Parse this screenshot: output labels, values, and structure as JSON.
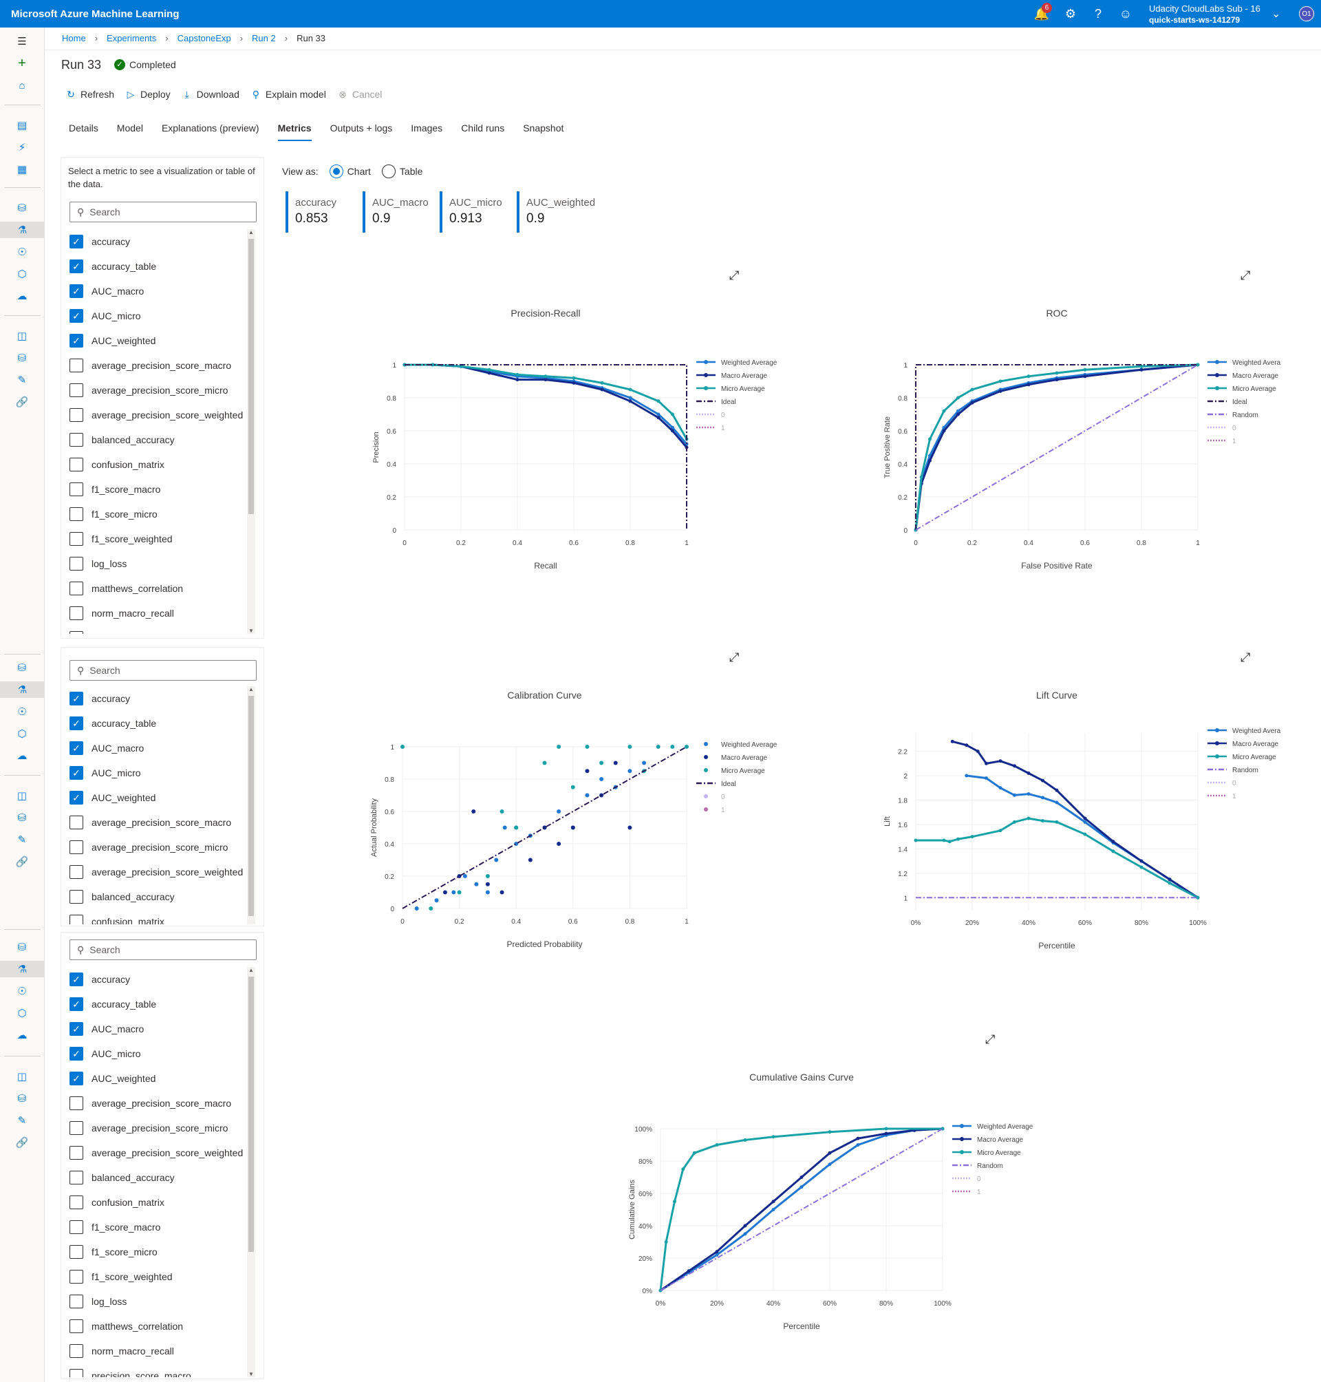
{
  "app": {
    "title": "Microsoft Azure Machine Learning",
    "notification_count": "6",
    "account_name": "Udacity CloudLabs Sub - 16",
    "workspace": "quick-starts-ws-141279",
    "avatar_initials": "O1"
  },
  "breadcrumb": [
    "Home",
    "Experiments",
    "CapstoneExp",
    "Run 2",
    "Run 33"
  ],
  "run": {
    "title": "Run 33",
    "status": "Completed"
  },
  "commands": [
    {
      "label": "Refresh",
      "icon": "refresh-icon"
    },
    {
      "label": "Deploy",
      "icon": "deploy-icon"
    },
    {
      "label": "Download",
      "icon": "download-icon"
    },
    {
      "label": "Explain model",
      "icon": "explain-icon"
    },
    {
      "label": "Cancel",
      "icon": "cancel-icon"
    }
  ],
  "tabs": [
    "Details",
    "Model",
    "Explanations (preview)",
    "Metrics",
    "Outputs + logs",
    "Images",
    "Child runs",
    "Snapshot"
  ],
  "active_tab": "Metrics",
  "metrics_panel": {
    "description": "Select a metric to see a visualization or table of the data.",
    "search_placeholder": "Search",
    "items": [
      {
        "label": "accuracy",
        "checked": true
      },
      {
        "label": "accuracy_table",
        "checked": true
      },
      {
        "label": "AUC_macro",
        "checked": true
      },
      {
        "label": "AUC_micro",
        "checked": true
      },
      {
        "label": "AUC_weighted",
        "checked": true
      },
      {
        "label": "average_precision_score_macro",
        "checked": false
      },
      {
        "label": "average_precision_score_micro",
        "checked": false
      },
      {
        "label": "average_precision_score_weighted",
        "checked": false
      },
      {
        "label": "balanced_accuracy",
        "checked": false
      },
      {
        "label": "confusion_matrix",
        "checked": false
      },
      {
        "label": "f1_score_macro",
        "checked": false
      },
      {
        "label": "f1_score_micro",
        "checked": false
      },
      {
        "label": "f1_score_weighted",
        "checked": false
      },
      {
        "label": "log_loss",
        "checked": false
      },
      {
        "label": "matthews_correlation",
        "checked": false
      },
      {
        "label": "norm_macro_recall",
        "checked": false
      },
      {
        "label": "precision_score_macro",
        "checked": false
      }
    ]
  },
  "view_as": {
    "label": "View as:",
    "options": [
      "Chart",
      "Table"
    ],
    "selected": "Chart"
  },
  "metric_tiles": [
    {
      "label": "accuracy",
      "value": "0.853"
    },
    {
      "label": "AUC_macro",
      "value": "0.9"
    },
    {
      "label": "AUC_micro",
      "value": "0.913"
    },
    {
      "label": "AUC_weighted",
      "value": "0.9"
    }
  ],
  "colors": {
    "accent": "#0078d4",
    "weighted": "#1f78d1",
    "macro": "#142a8c",
    "micro": "#17a2a8",
    "ideal": "#2b1a55",
    "random": "#8a6fd8",
    "class0": "#c4b3f0",
    "class1": "#b56bb0"
  },
  "chart_data": [
    {
      "type": "line",
      "title": "Precision-Recall",
      "xlabel": "Recall",
      "ylabel": "Precision",
      "xlim": [
        0,
        1
      ],
      "ylim": [
        0,
        1
      ],
      "xticks": [
        "0",
        "0.2",
        "0.4",
        "0.6",
        "0.8",
        "1"
      ],
      "yticks": [
        "0",
        "0.2",
        "0.4",
        "0.6",
        "0.8",
        "1"
      ],
      "legend": [
        "Weighted Average",
        "Macro Average",
        "Micro Average",
        "Ideal",
        "0",
        "1"
      ],
      "series": [
        {
          "name": "Weighted Average",
          "x": [
            0,
            0.1,
            0.2,
            0.3,
            0.4,
            0.5,
            0.6,
            0.7,
            0.8,
            0.9,
            0.95,
            1
          ],
          "y": [
            1,
            1,
            0.99,
            0.96,
            0.93,
            0.92,
            0.9,
            0.86,
            0.8,
            0.7,
            0.62,
            0.52
          ]
        },
        {
          "name": "Macro Average",
          "x": [
            0,
            0.1,
            0.2,
            0.3,
            0.4,
            0.5,
            0.6,
            0.7,
            0.8,
            0.9,
            0.95,
            1
          ],
          "y": [
            1,
            1,
            0.99,
            0.95,
            0.91,
            0.91,
            0.89,
            0.85,
            0.78,
            0.68,
            0.6,
            0.5
          ]
        },
        {
          "name": "Micro Average",
          "x": [
            0,
            0.1,
            0.2,
            0.3,
            0.4,
            0.5,
            0.6,
            0.7,
            0.8,
            0.9,
            0.95,
            1
          ],
          "y": [
            1,
            1,
            0.99,
            0.97,
            0.94,
            0.93,
            0.92,
            0.89,
            0.85,
            0.78,
            0.7,
            0.55
          ]
        },
        {
          "name": "Ideal",
          "x": [
            0,
            1,
            1
          ],
          "y": [
            1,
            1,
            0
          ]
        }
      ]
    },
    {
      "type": "line",
      "title": "ROC",
      "xlabel": "False Positive Rate",
      "ylabel": "True Positive Rate",
      "xlim": [
        0,
        1
      ],
      "ylim": [
        0,
        1
      ],
      "xticks": [
        "0",
        "0.2",
        "0.4",
        "0.6",
        "0.8",
        "1"
      ],
      "yticks": [
        "0",
        "0.2",
        "0.4",
        "0.6",
        "0.8",
        "1"
      ],
      "legend": [
        "Weighted Avera",
        "Macro Average",
        "Micro Average",
        "Ideal",
        "Random",
        "0",
        "1"
      ],
      "series": [
        {
          "name": "Weighted Avera",
          "x": [
            0,
            0.02,
            0.05,
            0.1,
            0.15,
            0.2,
            0.3,
            0.4,
            0.5,
            0.6,
            0.8,
            1
          ],
          "y": [
            0,
            0.3,
            0.45,
            0.62,
            0.72,
            0.78,
            0.85,
            0.89,
            0.92,
            0.94,
            0.97,
            1
          ]
        },
        {
          "name": "Macro Average",
          "x": [
            0,
            0.02,
            0.05,
            0.1,
            0.15,
            0.2,
            0.3,
            0.4,
            0.5,
            0.6,
            0.8,
            1
          ],
          "y": [
            0,
            0.28,
            0.42,
            0.6,
            0.7,
            0.77,
            0.84,
            0.88,
            0.91,
            0.93,
            0.97,
            1
          ]
        },
        {
          "name": "Micro Average",
          "x": [
            0,
            0.02,
            0.05,
            0.1,
            0.15,
            0.2,
            0.3,
            0.4,
            0.5,
            0.6,
            0.8,
            1
          ],
          "y": [
            0,
            0.32,
            0.55,
            0.72,
            0.8,
            0.85,
            0.9,
            0.93,
            0.95,
            0.97,
            0.99,
            1
          ]
        },
        {
          "name": "Ideal",
          "x": [
            0,
            0,
            1
          ],
          "y": [
            0,
            1,
            1
          ]
        },
        {
          "name": "Random",
          "x": [
            0,
            1
          ],
          "y": [
            0,
            1
          ]
        }
      ]
    },
    {
      "type": "scatter",
      "title": "Calibration Curve",
      "xlabel": "Predicted Probability",
      "ylabel": "Actual Probability",
      "xlim": [
        0,
        1
      ],
      "ylim": [
        0,
        1
      ],
      "xticks": [
        "0",
        "0.2",
        "0.4",
        "0.6",
        "0.8",
        "1"
      ],
      "yticks": [
        "0",
        "0.2",
        "0.4",
        "0.6",
        "0.8",
        "1"
      ],
      "legend": [
        "Weighted Average",
        "Macro Average",
        "Micro Average",
        "Ideal",
        "0",
        "1"
      ],
      "series": [
        {
          "name": "Weighted Average",
          "x": [
            0.05,
            0.12,
            0.18,
            0.22,
            0.26,
            0.3,
            0.33,
            0.36,
            0.4,
            0.45,
            0.5,
            0.55,
            0.6,
            0.65,
            0.7,
            0.75,
            0.8,
            0.85
          ],
          "y": [
            0,
            0.05,
            0.1,
            0.2,
            0.15,
            0.1,
            0.3,
            0.5,
            0.4,
            0.45,
            0.5,
            0.6,
            0.5,
            0.7,
            0.8,
            0.75,
            0.85,
            0.9
          ]
        },
        {
          "name": "Macro Average",
          "x": [
            0.15,
            0.2,
            0.25,
            0.3,
            0.35,
            0.4,
            0.45,
            0.5,
            0.55,
            0.6,
            0.65,
            0.7,
            0.75,
            0.8
          ],
          "y": [
            0.1,
            0.2,
            0.6,
            0.15,
            0.1,
            0.5,
            0.3,
            0.5,
            0.4,
            0.5,
            0.85,
            0.7,
            0.9,
            0.5
          ]
        },
        {
          "name": "Micro Average",
          "x": [
            0,
            0.1,
            0.2,
            0.3,
            0.35,
            0.4,
            0.5,
            0.55,
            0.6,
            0.65,
            0.7,
            0.8,
            0.85,
            0.9,
            0.95,
            1
          ],
          "y": [
            1,
            0,
            0.1,
            0.2,
            0.6,
            0.5,
            0.9,
            1,
            0.75,
            1,
            0.9,
            1,
            0.85,
            1,
            1,
            1
          ]
        },
        {
          "name": "Ideal",
          "x": [
            0,
            1
          ],
          "y": [
            0,
            1
          ]
        }
      ]
    },
    {
      "type": "line",
      "title": "Lift Curve",
      "xlabel": "Percentile",
      "ylabel": "Lift",
      "xlim": [
        0,
        100
      ],
      "ylim": [
        0.9,
        2.35
      ],
      "xticks": [
        "0%",
        "20%",
        "40%",
        "60%",
        "80%",
        "100%"
      ],
      "yticks": [
        "1",
        "1.2",
        "1.4",
        "1.6",
        "1.8",
        "2",
        "2.2"
      ],
      "legend": [
        "Weighted Avera",
        "Macro Average",
        "Micro Average",
        "Random",
        "0",
        "1"
      ],
      "series": [
        {
          "name": "Weighted Avera",
          "x": [
            18,
            25,
            30,
            35,
            40,
            45,
            50,
            60,
            70,
            80,
            90,
            100
          ],
          "y": [
            2.0,
            1.98,
            1.9,
            1.84,
            1.85,
            1.82,
            1.78,
            1.62,
            1.45,
            1.3,
            1.15,
            1.0
          ]
        },
        {
          "name": "Macro Average",
          "x": [
            13,
            18,
            22,
            25,
            30,
            35,
            40,
            45,
            50,
            60,
            70,
            80,
            90,
            100
          ],
          "y": [
            2.28,
            2.25,
            2.2,
            2.1,
            2.12,
            2.08,
            2.02,
            1.96,
            1.88,
            1.65,
            1.46,
            1.3,
            1.15,
            1.0
          ]
        },
        {
          "name": "Micro Average",
          "x": [
            0,
            10,
            12,
            15,
            20,
            30,
            35,
            40,
            45,
            50,
            60,
            70,
            80,
            90,
            100
          ],
          "y": [
            1.47,
            1.47,
            1.46,
            1.48,
            1.5,
            1.55,
            1.62,
            1.65,
            1.63,
            1.62,
            1.52,
            1.38,
            1.25,
            1.12,
            1.0
          ]
        },
        {
          "name": "Random",
          "x": [
            0,
            100
          ],
          "y": [
            1,
            1
          ]
        }
      ]
    },
    {
      "type": "line",
      "title": "Cumulative Gains Curve",
      "xlabel": "Percentile",
      "ylabel": "Cumulative Gains",
      "xlim": [
        0,
        100
      ],
      "ylim": [
        0,
        100
      ],
      "xticks": [
        "0%",
        "20%",
        "40%",
        "60%",
        "80%",
        "100%"
      ],
      "yticks": [
        "0%",
        "20%",
        "40%",
        "60%",
        "80%",
        "100%"
      ],
      "legend": [
        "Weighted Average",
        "Macro Average",
        "Micro Average",
        "Random",
        "0",
        "1"
      ],
      "series": [
        {
          "name": "Weighted Average",
          "x": [
            0,
            10,
            20,
            30,
            40,
            50,
            60,
            70,
            80,
            90,
            100
          ],
          "y": [
            0,
            11,
            22,
            35,
            50,
            64,
            78,
            90,
            96,
            99,
            100
          ]
        },
        {
          "name": "Macro Average",
          "x": [
            0,
            10,
            20,
            30,
            40,
            50,
            60,
            70,
            80,
            90,
            100
          ],
          "y": [
            0,
            12,
            24,
            40,
            55,
            70,
            85,
            94,
            97,
            99,
            100
          ]
        },
        {
          "name": "Micro Average",
          "x": [
            0,
            2,
            5,
            8,
            12,
            20,
            30,
            40,
            60,
            80,
            100
          ],
          "y": [
            0,
            30,
            55,
            75,
            85,
            90,
            93,
            95,
            98,
            100,
            100
          ]
        },
        {
          "name": "Random",
          "x": [
            0,
            100
          ],
          "y": [
            0,
            100
          ]
        }
      ]
    }
  ]
}
